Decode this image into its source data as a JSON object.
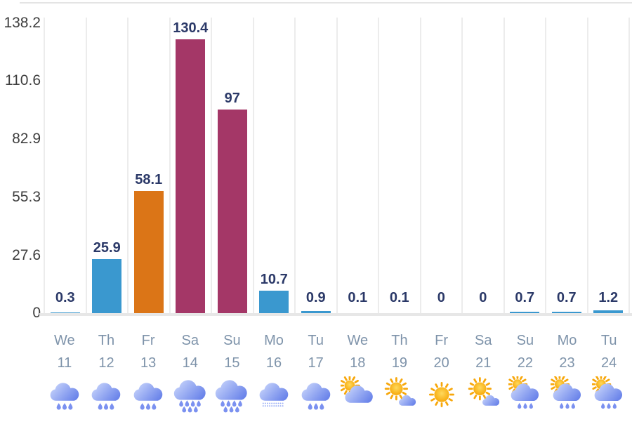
{
  "chart_data": {
    "type": "bar",
    "title": "",
    "xlabel": "",
    "ylabel": "",
    "ylim": [
      0,
      138.2
    ],
    "grid": "vertical-only",
    "legend": "none",
    "y_ticks": [
      "138.2",
      "110.6",
      "82.9",
      "55.3",
      "27.6",
      "0"
    ],
    "y_tick_values": [
      138.2,
      110.6,
      82.9,
      55.3,
      27.6,
      0
    ],
    "values": [
      0.3,
      25.9,
      58.1,
      130.4,
      97,
      10.7,
      0.9,
      0.1,
      0.1,
      0,
      0,
      0.7,
      0.7,
      1.2
    ],
    "value_labels": [
      "0.3",
      "25.9",
      "58.1",
      "130.4",
      "97",
      "10.7",
      "0.9",
      "0.1",
      "0.1",
      "0",
      "0",
      "0.7",
      "0.7",
      "1.2"
    ],
    "bar_colors": [
      "#3A98CF",
      "#3A98CF",
      "#DB7517",
      "#A43767",
      "#A43767",
      "#3A98CF",
      "#3A98CF",
      "#3A98CF",
      "#3A98CF",
      "#3A98CF",
      "#3A98CF",
      "#3A98CF",
      "#3A98CF",
      "#3A98CF"
    ],
    "categories": [
      {
        "day": "We",
        "date": "11",
        "icon": "rain-cloud"
      },
      {
        "day": "Th",
        "date": "12",
        "icon": "rain-cloud"
      },
      {
        "day": "Fr",
        "date": "13",
        "icon": "rain-cloud"
      },
      {
        "day": "Sa",
        "date": "14",
        "icon": "heavy-rain-cloud"
      },
      {
        "day": "Su",
        "date": "15",
        "icon": "heavy-rain-cloud"
      },
      {
        "day": "Mo",
        "date": "16",
        "icon": "drizzle-cloud"
      },
      {
        "day": "Tu",
        "date": "17",
        "icon": "rain-cloud"
      },
      {
        "day": "We",
        "date": "18",
        "icon": "sun-behind-cloud"
      },
      {
        "day": "Th",
        "date": "19",
        "icon": "sun-with-small-cloud"
      },
      {
        "day": "Fr",
        "date": "20",
        "icon": "sun"
      },
      {
        "day": "Sa",
        "date": "21",
        "icon": "sun-with-small-cloud"
      },
      {
        "day": "Su",
        "date": "22",
        "icon": "sun-behind-rain-cloud"
      },
      {
        "day": "Mo",
        "date": "23",
        "icon": "sun-behind-rain-cloud"
      },
      {
        "day": "Tu",
        "date": "24",
        "icon": "sun-behind-rain-cloud"
      }
    ]
  },
  "colors": {
    "bar_blue": "#3A98CF",
    "bar_orange": "#DB7517",
    "bar_magenta": "#A43767",
    "value_label": "#2B3968",
    "axis_label": "#3E3E3E",
    "day_label": "#7E93AA",
    "gridline": "#ECECEC",
    "baseline": "#E7E7E7",
    "background": "#FFFFFF",
    "icon_cloud_light": "#C6D3FB",
    "icon_cloud_dark": "#6680E9",
    "icon_rain_drop": "#7B91F0",
    "icon_drizzle_dot": "#9DB0F5",
    "icon_sun_light": "#FFD95C",
    "icon_sun_dark": "#F6A300",
    "icon_sun_ray": "#F7A70B"
  }
}
